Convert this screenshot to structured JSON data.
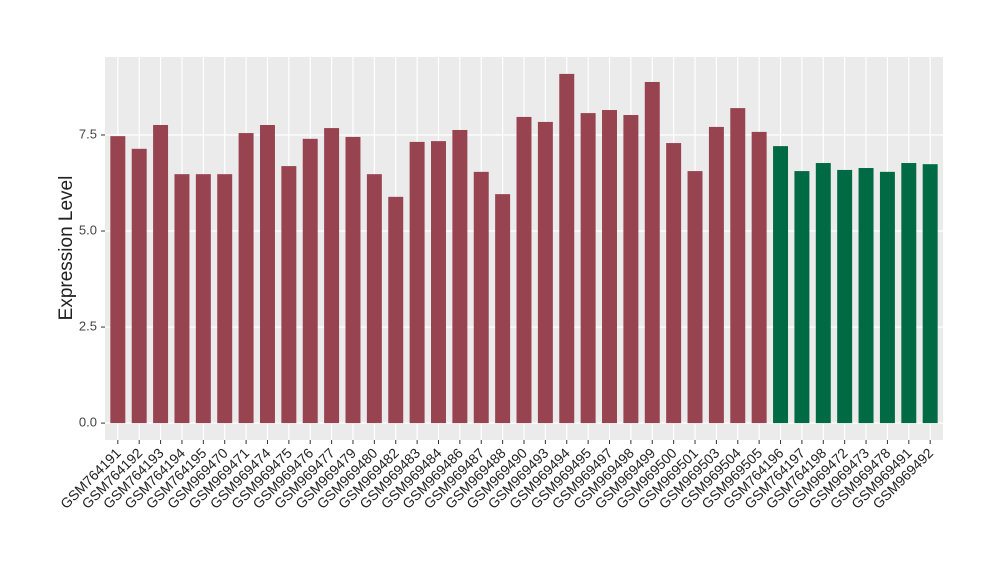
{
  "chart_data": {
    "type": "bar",
    "y_label": "Expression Level",
    "categories": [
      "GSM764191",
      "GSM764192",
      "GSM764193",
      "GSM764194",
      "GSM764195",
      "GSM969470",
      "GSM969471",
      "GSM969474",
      "GSM969475",
      "GSM969476",
      "GSM969477",
      "GSM969479",
      "GSM969480",
      "GSM969482",
      "GSM969483",
      "GSM969484",
      "GSM969486",
      "GSM969487",
      "GSM969488",
      "GSM969490",
      "GSM969493",
      "GSM969494",
      "GSM969495",
      "GSM969497",
      "GSM969498",
      "GSM969499",
      "GSM969500",
      "GSM969501",
      "GSM969503",
      "GSM969504",
      "GSM969505",
      "GSM764196",
      "GSM764197",
      "GSM764198",
      "GSM969472",
      "GSM969473",
      "GSM969478",
      "GSM969491",
      "GSM969492"
    ],
    "values": [
      7.47,
      7.14,
      7.76,
      6.48,
      6.48,
      6.48,
      7.55,
      7.76,
      6.69,
      7.4,
      7.68,
      7.45,
      6.48,
      5.89,
      7.32,
      7.34,
      7.63,
      6.54,
      5.96,
      7.97,
      7.84,
      9.09,
      8.07,
      8.15,
      8.02,
      8.88,
      7.29,
      6.56,
      7.71,
      8.2,
      7.58,
      7.21,
      6.56,
      6.77,
      6.59,
      6.64,
      6.54,
      6.77,
      6.74
    ],
    "colors": [
      "#984350",
      "#984350",
      "#984350",
      "#984350",
      "#984350",
      "#984350",
      "#984350",
      "#984350",
      "#984350",
      "#984350",
      "#984350",
      "#984350",
      "#984350",
      "#984350",
      "#984350",
      "#984350",
      "#984350",
      "#984350",
      "#984350",
      "#984350",
      "#984350",
      "#984350",
      "#984350",
      "#984350",
      "#984350",
      "#984350",
      "#984350",
      "#984350",
      "#984350",
      "#984350",
      "#984350",
      "#006a45",
      "#006a45",
      "#006a45",
      "#006a45",
      "#006a45",
      "#006a45",
      "#006a45",
      "#006a45"
    ],
    "ylim": [
      -0.44,
      9.53
    ],
    "yticks": [
      {
        "value": 0,
        "label": "0.0"
      },
      2.5,
      {
        "value": 5,
        "label": "5.0"
      },
      7.5
    ],
    "grid": true
  }
}
